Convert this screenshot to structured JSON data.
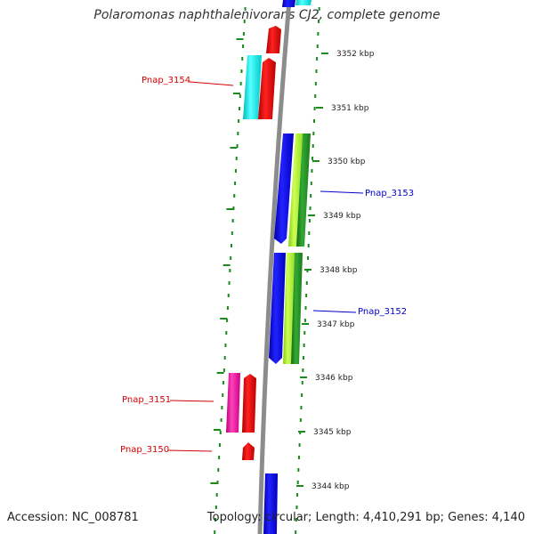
{
  "title": "Polaromonas naphthalenivorans CJ2, complete genome",
  "accession_text": "Accession: NC_008781",
  "summary_text": "Topology: circular; Length: 4,410,291 bp; Genes: 4,140",
  "colors": {
    "background": "#ffffff",
    "backbone": "#8c8c8c",
    "dots": "#1a8a1a",
    "label_red": "#d40000",
    "label_blue": "#0000cc",
    "gene_red": "#ee0000",
    "gene_blue": "#0000dd",
    "gene_cyan": "#00eeee",
    "gene_lightgreen": "#aaee33",
    "gene_darkgreen": "#228b22",
    "gene_pink": "#ee1199"
  },
  "ticks": [
    {
      "label": "3352 kbp"
    },
    {
      "label": "3351 kbp"
    },
    {
      "label": "3350 kbp"
    },
    {
      "label": "3349 kbp"
    },
    {
      "label": "3348 kbp"
    },
    {
      "label": "3347 kbp"
    },
    {
      "label": "3346 kbp"
    },
    {
      "label": "3345 kbp"
    },
    {
      "label": "3344 kbp"
    }
  ],
  "gene_labels": [
    {
      "text": "Pnap_3154",
      "color": "#d40000"
    },
    {
      "text": "Pnap_3153",
      "color": "#0000cc"
    },
    {
      "text": "Pnap_3152",
      "color": "#0000cc"
    },
    {
      "text": "Pnap_3151",
      "color": "#d40000"
    },
    {
      "text": "Pnap_3150",
      "color": "#d40000"
    }
  ]
}
